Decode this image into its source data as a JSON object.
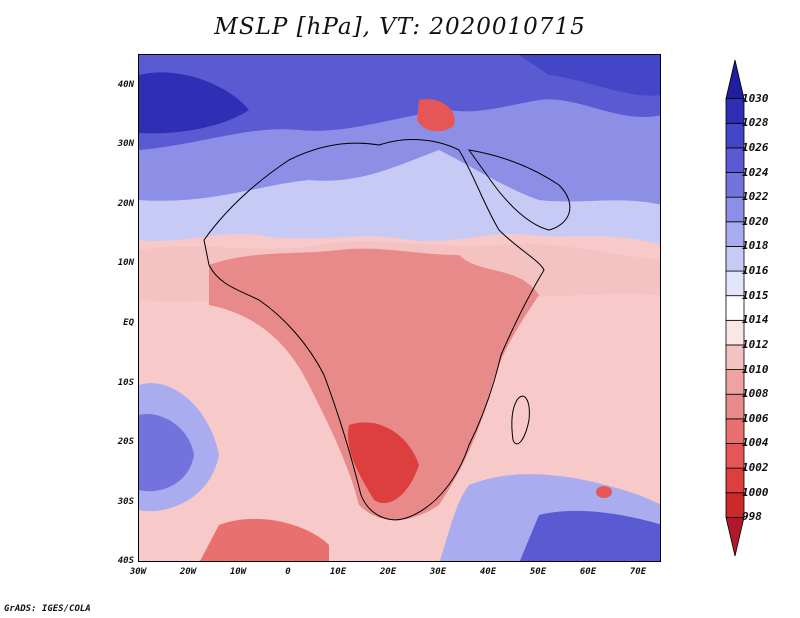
{
  "title": "MSLP [hPa], VT: 2020010715",
  "credit": "GrADS: IGES/COLA",
  "map": {
    "lon_labels": [
      "30W",
      "20W",
      "10W",
      "0",
      "10E",
      "20E",
      "30E",
      "40E",
      "50E",
      "60E",
      "70E"
    ],
    "lat_labels": [
      "40N",
      "30N",
      "20N",
      "10N",
      "EQ",
      "10S",
      "20S",
      "30S",
      "40S"
    ]
  },
  "colorbar": {
    "levels": [
      "998",
      "1000",
      "1002",
      "1004",
      "1006",
      "1008",
      "1010",
      "1012",
      "1014",
      "1015",
      "1016",
      "1018",
      "1020",
      "1022",
      "1024",
      "1026",
      "1028",
      "1030"
    ],
    "colors": [
      "#b2182b",
      "#cc2a2a",
      "#dd3e3e",
      "#e65656",
      "#e97070",
      "#e98a8a",
      "#eea3a3",
      "#f5c2c2",
      "#fbe6e6",
      "#ffffff",
      "#e3e6fb",
      "#c7caf5",
      "#a9acee",
      "#8d8fe6",
      "#7273dd",
      "#5a5bd3",
      "#4446c8",
      "#2f2fb5",
      "#1f1e9e"
    ]
  }
}
